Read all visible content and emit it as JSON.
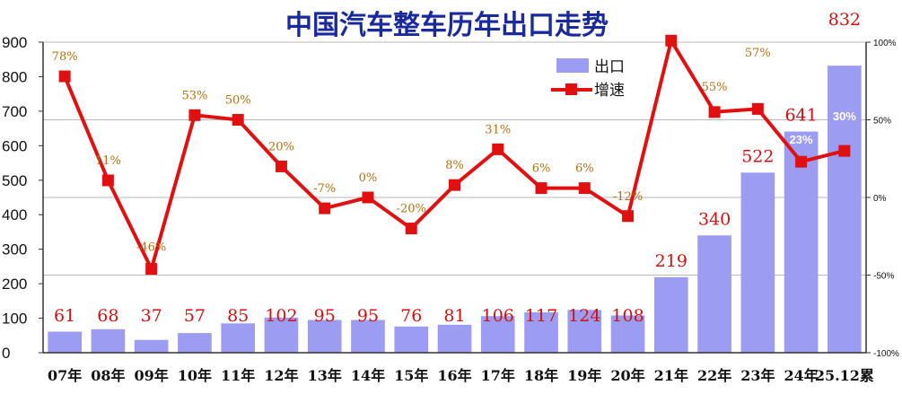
{
  "chart_data": {
    "type": "bar",
    "title": "中国汽车整车历年出口走势",
    "categories": [
      "07年",
      "08年",
      "09年",
      "10年",
      "11年",
      "12年",
      "13年",
      "14年",
      "15年",
      "16年",
      "17年",
      "18年",
      "19年",
      "20年",
      "21年",
      "22年",
      "23年",
      "24年",
      "25.12累"
    ],
    "series": [
      {
        "name": "出口",
        "type": "bar",
        "axis": "left",
        "values": [
          61,
          68,
          37,
          57,
          85,
          102,
          95,
          95,
          76,
          81,
          106,
          117,
          124,
          108,
          219,
          340,
          522,
          641,
          832
        ],
        "labels": [
          "61",
          "68",
          "37",
          "57",
          "85",
          "102",
          "95",
          "95",
          "76",
          "81",
          "106",
          "117",
          "124",
          "108",
          "219",
          "340",
          "522",
          "641",
          "832"
        ]
      },
      {
        "name": "增速",
        "type": "line",
        "axis": "right",
        "values": [
          78,
          11,
          -46,
          53,
          50,
          20,
          -7,
          0,
          -20,
          8,
          31,
          6,
          6,
          -12,
          101,
          55,
          57,
          23,
          30
        ],
        "labels": [
          "78%",
          "11%",
          "-46%",
          "53%",
          "50%",
          "20%",
          "-7%",
          "0%",
          "-20%",
          "8%",
          "31%",
          "6%",
          "6%",
          "-12%",
          "",
          "55%",
          "57%",
          "23%",
          "30%"
        ]
      }
    ],
    "y_left": {
      "min": 0,
      "max": 900,
      "ticks": [
        "0",
        "100",
        "200",
        "300",
        "400",
        "500",
        "600",
        "700",
        "800",
        "900"
      ]
    },
    "y_right": {
      "min": -100,
      "max": 100,
      "ticks": [
        "-100%",
        "-50%",
        "0%",
        "50%",
        "100%"
      ]
    },
    "legend_placement": "top-right",
    "colors": {
      "bar": "#9c9cf2",
      "line": "#e01010",
      "title": "#1a2a9c",
      "bar_label": "#d01010",
      "growth_label": "#b07010"
    },
    "grid": "horizontal lines at right-axis ticks"
  }
}
